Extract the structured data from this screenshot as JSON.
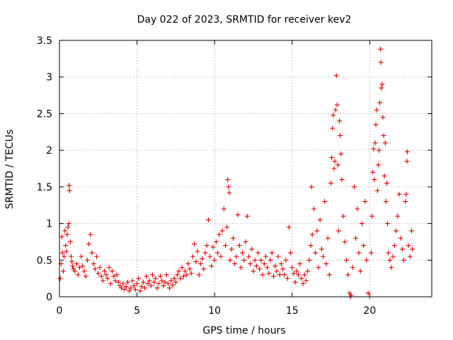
{
  "chart_data": {
    "type": "scatter",
    "title": "Day 022 of 2023, SRMTID for receiver kev2",
    "xlabel": "GPS time / hours",
    "ylabel": "SRMTID / TECUs",
    "xlim": [
      0,
      24
    ],
    "ylim": [
      0,
      3.5
    ],
    "x_ticks": [
      0,
      5,
      10,
      15,
      20
    ],
    "x_tick_labels": [
      "0",
      "5",
      "10",
      "15",
      "20"
    ],
    "y_ticks": [
      0,
      0.5,
      1,
      1.5,
      2,
      2.5,
      3,
      3.5
    ],
    "y_tick_labels": [
      "0",
      "0.5",
      "1",
      "1.5",
      "2",
      "2.5",
      "3",
      "3.5"
    ],
    "grid": true,
    "marker": "+",
    "series": [
      {
        "name": "kev2",
        "color": "#e00000",
        "points": [
          [
            0.05,
            0.25
          ],
          [
            0.1,
            0.45
          ],
          [
            0.15,
            0.82
          ],
          [
            0.2,
            0.6
          ],
          [
            0.25,
            0.35
          ],
          [
            0.3,
            0.55
          ],
          [
            0.35,
            0.9
          ],
          [
            0.4,
            0.7
          ],
          [
            0.45,
            0.62
          ],
          [
            0.5,
            0.85
          ],
          [
            0.55,
            0.95
          ],
          [
            0.6,
            1.0
          ],
          [
            0.62,
            1.52
          ],
          [
            0.65,
            1.45
          ],
          [
            0.7,
            0.75
          ],
          [
            0.75,
            0.55
          ],
          [
            0.8,
            0.48
          ],
          [
            0.85,
            0.42
          ],
          [
            0.9,
            0.38
          ],
          [
            1.0,
            0.35
          ],
          [
            1.1,
            0.45
          ],
          [
            1.2,
            0.3
          ],
          [
            1.3,
            0.4
          ],
          [
            1.4,
            0.55
          ],
          [
            1.5,
            0.42
          ],
          [
            1.6,
            0.35
          ],
          [
            1.7,
            0.28
          ],
          [
            1.8,
            0.5
          ],
          [
            1.9,
            0.72
          ],
          [
            2.0,
            0.85
          ],
          [
            2.1,
            0.6
          ],
          [
            2.2,
            0.45
          ],
          [
            2.3,
            0.38
          ],
          [
            2.4,
            0.55
          ],
          [
            2.5,
            0.32
          ],
          [
            2.6,
            0.4
          ],
          [
            2.7,
            0.28
          ],
          [
            2.8,
            0.22
          ],
          [
            2.9,
            0.35
          ],
          [
            3.0,
            0.3
          ],
          [
            3.1,
            0.25
          ],
          [
            3.2,
            0.4
          ],
          [
            3.3,
            0.18
          ],
          [
            3.4,
            0.35
          ],
          [
            3.5,
            0.28
          ],
          [
            3.6,
            0.22
          ],
          [
            3.7,
            0.3
          ],
          [
            3.8,
            0.2
          ],
          [
            3.9,
            0.15
          ],
          [
            4.0,
            0.12
          ],
          [
            4.1,
            0.18
          ],
          [
            4.2,
            0.1
          ],
          [
            4.3,
            0.14
          ],
          [
            4.4,
            0.2
          ],
          [
            4.5,
            0.08
          ],
          [
            4.6,
            0.12
          ],
          [
            4.7,
            0.22
          ],
          [
            4.8,
            0.15
          ],
          [
            4.9,
            0.1
          ],
          [
            5.0,
            0.18
          ],
          [
            5.1,
            0.25
          ],
          [
            5.2,
            0.08
          ],
          [
            5.3,
            0.14
          ],
          [
            5.4,
            0.2
          ],
          [
            5.5,
            0.12
          ],
          [
            5.6,
            0.28
          ],
          [
            5.7,
            0.18
          ],
          [
            5.8,
            0.22
          ],
          [
            5.9,
            0.15
          ],
          [
            6.0,
            0.3
          ],
          [
            6.1,
            0.2
          ],
          [
            6.2,
            0.25
          ],
          [
            6.3,
            0.12
          ],
          [
            6.4,
            0.18
          ],
          [
            6.5,
            0.28
          ],
          [
            6.6,
            0.22
          ],
          [
            6.7,
            0.15
          ],
          [
            6.8,
            0.2
          ],
          [
            6.9,
            0.3
          ],
          [
            7.0,
            0.18
          ],
          [
            7.1,
            0.12
          ],
          [
            7.2,
            0.22
          ],
          [
            7.3,
            0.16
          ],
          [
            7.4,
            0.25
          ],
          [
            7.5,
            0.2
          ],
          [
            7.6,
            0.3
          ],
          [
            7.7,
            0.35
          ],
          [
            7.8,
            0.25
          ],
          [
            7.9,
            0.4
          ],
          [
            8.0,
            0.28
          ],
          [
            8.1,
            0.35
          ],
          [
            8.2,
            0.3
          ],
          [
            8.3,
            0.45
          ],
          [
            8.4,
            0.38
          ],
          [
            8.5,
            0.32
          ],
          [
            8.6,
            0.55
          ],
          [
            8.7,
            0.72
          ],
          [
            8.8,
            0.48
          ],
          [
            8.9,
            0.62
          ],
          [
            9.0,
            0.3
          ],
          [
            9.1,
            0.45
          ],
          [
            9.2,
            0.52
          ],
          [
            9.3,
            0.38
          ],
          [
            9.4,
            0.6
          ],
          [
            9.5,
            0.7
          ],
          [
            9.6,
            1.05
          ],
          [
            9.7,
            0.55
          ],
          [
            9.8,
            0.42
          ],
          [
            9.9,
            0.68
          ],
          [
            10.0,
            0.5
          ],
          [
            10.1,
            0.75
          ],
          [
            10.2,
            0.6
          ],
          [
            10.3,
            0.85
          ],
          [
            10.4,
            0.55
          ],
          [
            10.5,
            0.9
          ],
          [
            10.6,
            1.2
          ],
          [
            10.7,
            0.7
          ],
          [
            10.8,
            0.95
          ],
          [
            10.85,
            1.6
          ],
          [
            10.9,
            1.5
          ],
          [
            10.95,
            1.42
          ],
          [
            11.0,
            0.5
          ],
          [
            11.1,
            0.65
          ],
          [
            11.2,
            0.8
          ],
          [
            11.3,
            0.45
          ],
          [
            11.4,
            0.55
          ],
          [
            11.5,
            1.12
          ],
          [
            11.6,
            0.7
          ],
          [
            11.7,
            0.4
          ],
          [
            11.8,
            0.6
          ],
          [
            11.9,
            0.5
          ],
          [
            12.0,
            0.75
          ],
          [
            12.1,
            1.1
          ],
          [
            12.2,
            0.55
          ],
          [
            12.3,
            0.45
          ],
          [
            12.4,
            0.65
          ],
          [
            12.5,
            0.35
          ],
          [
            12.6,
            0.5
          ],
          [
            12.7,
            0.42
          ],
          [
            12.8,
            0.6
          ],
          [
            12.9,
            0.38
          ],
          [
            13.0,
            0.5
          ],
          [
            13.1,
            0.3
          ],
          [
            13.2,
            0.45
          ],
          [
            13.3,
            0.55
          ],
          [
            13.4,
            0.4
          ],
          [
            13.5,
            0.32
          ],
          [
            13.6,
            0.5
          ],
          [
            13.7,
            0.6
          ],
          [
            13.8,
            0.28
          ],
          [
            13.9,
            0.42
          ],
          [
            14.0,
            0.35
          ],
          [
            14.1,
            0.55
          ],
          [
            14.2,
            0.3
          ],
          [
            14.3,
            0.45
          ],
          [
            14.4,
            0.38
          ],
          [
            14.5,
            0.3
          ],
          [
            14.6,
            0.5
          ],
          [
            14.7,
            0.25
          ],
          [
            14.8,
            0.95
          ],
          [
            14.9,
            0.6
          ],
          [
            15.0,
            0.4
          ],
          [
            15.1,
            0.32
          ],
          [
            15.2,
            0.2
          ],
          [
            15.3,
            0.35
          ],
          [
            15.4,
            0.3
          ],
          [
            15.5,
            0.45
          ],
          [
            15.6,
            0.25
          ],
          [
            15.7,
            0.18
          ],
          [
            15.8,
            0.3
          ],
          [
            15.9,
            0.22
          ],
          [
            16.0,
            0.35
          ],
          [
            16.1,
            0.5
          ],
          [
            16.2,
            0.7
          ],
          [
            16.25,
            1.5
          ],
          [
            16.3,
            0.85
          ],
          [
            16.4,
            1.2
          ],
          [
            16.5,
            0.6
          ],
          [
            16.6,
            0.9
          ],
          [
            16.7,
            0.4
          ],
          [
            16.8,
            1.05
          ],
          [
            16.9,
            0.65
          ],
          [
            17.0,
            0.55
          ],
          [
            17.1,
            1.3
          ],
          [
            17.2,
            0.45
          ],
          [
            17.3,
            0.8
          ],
          [
            17.4,
            0.3
          ],
          [
            17.5,
            1.55
          ],
          [
            17.55,
            1.9
          ],
          [
            17.6,
            2.3
          ],
          [
            17.65,
            2.48
          ],
          [
            17.7,
            1.75
          ],
          [
            17.75,
            1.85
          ],
          [
            17.8,
            2.55
          ],
          [
            17.85,
            3.02
          ],
          [
            17.9,
            2.62
          ],
          [
            17.95,
            1.8
          ],
          [
            18.0,
            0.9
          ],
          [
            18.05,
            2.4
          ],
          [
            18.1,
            2.2
          ],
          [
            18.15,
            1.95
          ],
          [
            18.2,
            1.6
          ],
          [
            18.3,
            1.1
          ],
          [
            18.4,
            0.75
          ],
          [
            18.5,
            0.5
          ],
          [
            18.6,
            0.3
          ],
          [
            18.7,
            0.05
          ],
          [
            18.75,
            0.0
          ],
          [
            18.8,
            0.02
          ],
          [
            18.9,
            0.4
          ],
          [
            19.0,
            1.5
          ],
          [
            19.1,
            0.8
          ],
          [
            19.2,
            1.2
          ],
          [
            19.3,
            0.6
          ],
          [
            19.4,
            0.35
          ],
          [
            19.5,
            1.0
          ],
          [
            19.6,
            0.7
          ],
          [
            19.7,
            1.3
          ],
          [
            19.8,
            0.5
          ],
          [
            19.9,
            0.05
          ],
          [
            20.0,
            0.0
          ],
          [
            20.1,
            0.6
          ],
          [
            20.15,
            1.1
          ],
          [
            20.2,
            1.7
          ],
          [
            20.25,
            2.02
          ],
          [
            20.3,
            1.6
          ],
          [
            20.35,
            2.1
          ],
          [
            20.4,
            2.35
          ],
          [
            20.45,
            2.55
          ],
          [
            20.5,
            1.45
          ],
          [
            20.55,
            1.8
          ],
          [
            20.6,
            2.0
          ],
          [
            20.65,
            2.65
          ],
          [
            20.7,
            3.38
          ],
          [
            20.72,
            3.2
          ],
          [
            20.75,
            2.85
          ],
          [
            20.8,
            2.9
          ],
          [
            20.85,
            2.45
          ],
          [
            20.9,
            2.2
          ],
          [
            20.95,
            1.65
          ],
          [
            21.0,
            2.1
          ],
          [
            21.05,
            1.3
          ],
          [
            21.1,
            1.55
          ],
          [
            21.15,
            1.0
          ],
          [
            21.2,
            0.6
          ],
          [
            21.3,
            0.5
          ],
          [
            21.4,
            0.4
          ],
          [
            21.5,
            0.55
          ],
          [
            21.6,
            0.7
          ],
          [
            21.7,
            0.9
          ],
          [
            21.8,
            1.1
          ],
          [
            21.9,
            1.4
          ],
          [
            22.0,
            0.8
          ],
          [
            22.1,
            0.65
          ],
          [
            22.2,
            0.5
          ],
          [
            22.3,
            1.3
          ],
          [
            22.35,
            1.4
          ],
          [
            22.4,
            1.85
          ],
          [
            22.42,
            1.98
          ],
          [
            22.5,
            0.7
          ],
          [
            22.6,
            0.55
          ],
          [
            22.7,
            0.9
          ],
          [
            22.75,
            0.65
          ]
        ]
      }
    ]
  }
}
